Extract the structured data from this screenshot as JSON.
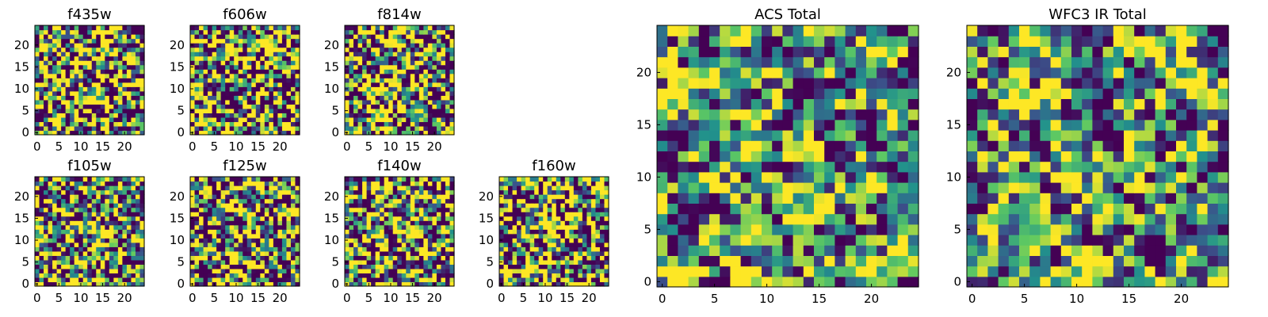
{
  "chart_data": {
    "type": "heatmap",
    "colormap": [
      "#440154",
      "#3b528b",
      "#21918c",
      "#5ec962",
      "#fde725"
    ],
    "panels": [
      {
        "title": "f435w",
        "grid_size": 25,
        "xlim": [
          0,
          24
        ],
        "ylim": [
          0,
          24
        ],
        "xticks": [
          0,
          5,
          10,
          15,
          20
        ],
        "yticks": [
          0,
          5,
          10,
          15,
          20
        ]
      },
      {
        "title": "f606w",
        "grid_size": 25,
        "xlim": [
          0,
          24
        ],
        "ylim": [
          0,
          24
        ],
        "xticks": [
          0,
          5,
          10,
          15,
          20
        ],
        "yticks": [
          0,
          5,
          10,
          15,
          20
        ]
      },
      {
        "title": "f814w",
        "grid_size": 25,
        "xlim": [
          0,
          24
        ],
        "ylim": [
          0,
          24
        ],
        "xticks": [
          0,
          5,
          10,
          15,
          20
        ],
        "yticks": [
          0,
          5,
          10,
          15,
          20
        ]
      },
      {
        "title": "f105w",
        "grid_size": 25,
        "xlim": [
          0,
          24
        ],
        "ylim": [
          0,
          24
        ],
        "xticks": [
          0,
          5,
          10,
          15,
          20
        ],
        "yticks": [
          0,
          5,
          10,
          15,
          20
        ]
      },
      {
        "title": "f125w",
        "grid_size": 25,
        "xlim": [
          0,
          24
        ],
        "ylim": [
          0,
          24
        ],
        "xticks": [
          0,
          5,
          10,
          15,
          20
        ],
        "yticks": [
          0,
          5,
          10,
          15,
          20
        ]
      },
      {
        "title": "f140w",
        "grid_size": 25,
        "xlim": [
          0,
          24
        ],
        "ylim": [
          0,
          24
        ],
        "xticks": [
          0,
          5,
          10,
          15,
          20
        ],
        "yticks": [
          0,
          5,
          10,
          15,
          20
        ]
      },
      {
        "title": "f160w",
        "grid_size": 25,
        "xlim": [
          0,
          24
        ],
        "ylim": [
          0,
          24
        ],
        "xticks": [
          0,
          5,
          10,
          15,
          20
        ],
        "yticks": [
          0,
          5,
          10,
          15,
          20
        ]
      },
      {
        "title": "ACS Total",
        "grid_size": 25,
        "xlim": [
          0,
          24
        ],
        "ylim": [
          0,
          24
        ],
        "xticks": [
          0,
          5,
          10,
          15,
          20
        ],
        "yticks": [
          0,
          5,
          10,
          15,
          20
        ]
      },
      {
        "title": "WFC3 IR Total",
        "grid_size": 25,
        "xlim": [
          0,
          24
        ],
        "ylim": [
          0,
          24
        ],
        "xticks": [
          0,
          5,
          10,
          15,
          20
        ],
        "yticks": [
          0,
          5,
          10,
          15,
          20
        ]
      }
    ]
  }
}
